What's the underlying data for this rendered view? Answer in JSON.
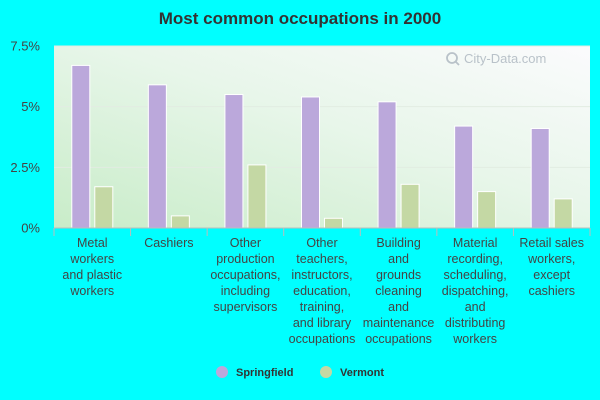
{
  "chart_data": {
    "type": "bar",
    "title": "Most common occupations in 2000",
    "categories": [
      [
        "Metal",
        "workers",
        "and plastic",
        "workers"
      ],
      [
        "Cashiers"
      ],
      [
        "Other",
        "production",
        "occupations,",
        "including",
        "supervisors"
      ],
      [
        "Other",
        "teachers,",
        "instructors,",
        "education,",
        "training,",
        "and library",
        "occupations"
      ],
      [
        "Building",
        "and",
        "grounds",
        "cleaning",
        "and",
        "maintenance",
        "occupations"
      ],
      [
        "Material",
        "recording,",
        "scheduling,",
        "dispatching,",
        "and",
        "distributing",
        "workers"
      ],
      [
        "Retail sales",
        "workers,",
        "except",
        "cashiers"
      ]
    ],
    "series": [
      {
        "name": "Springfield",
        "values": [
          6.7,
          5.9,
          5.5,
          5.4,
          5.2,
          4.2,
          4.1
        ],
        "color": "#bba8db"
      },
      {
        "name": "Vermont",
        "values": [
          1.7,
          0.5,
          2.6,
          0.4,
          1.8,
          1.5,
          1.2
        ],
        "color": "#c4d8a4"
      }
    ],
    "yticks": [
      "0%",
      "2.5%",
      "5%",
      "7.5%"
    ],
    "ytick_values": [
      0,
      2.5,
      5,
      7.5
    ],
    "ylim": [
      0,
      7.5
    ],
    "legend_position": "bottom",
    "grid": true,
    "watermark": "City-Data.com"
  }
}
